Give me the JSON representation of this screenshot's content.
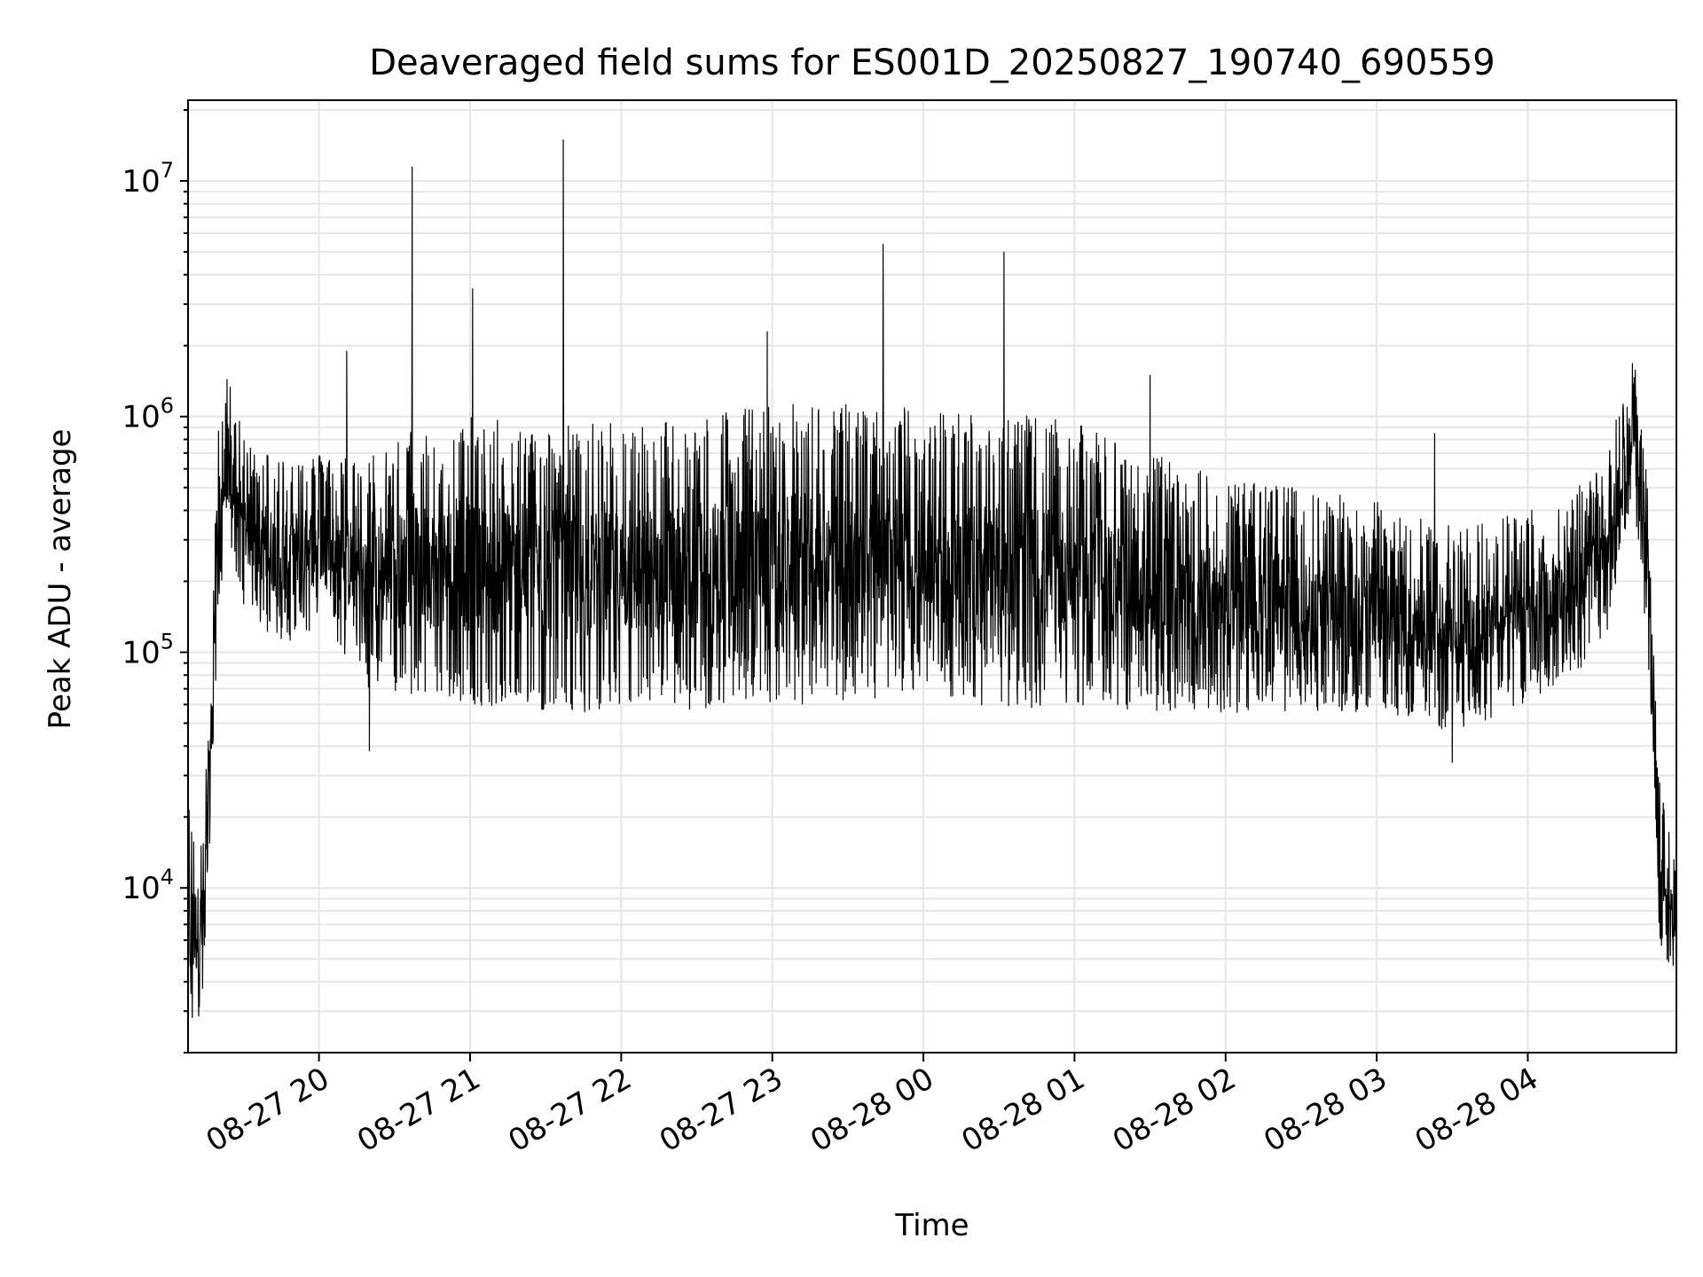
{
  "chart_data": {
    "type": "line",
    "title": "Deaveraged field sums for ES001D_20250827_190740_690559",
    "xlabel": "Time",
    "ylabel": "Peak ADU - average",
    "yscale": "log",
    "ylim": [
      2000,
      22000000
    ],
    "xlim": [
      "2025-08-27 19:08",
      "2025-08-28 04:59"
    ],
    "x_ticks": [
      "2025-08-27 20:00",
      "2025-08-27 21:00",
      "2025-08-27 22:00",
      "2025-08-27 23:00",
      "2025-08-28 00:00",
      "2025-08-28 01:00",
      "2025-08-28 02:00",
      "2025-08-28 03:00",
      "2025-08-28 04:00"
    ],
    "x_tick_labels": [
      "08-27 20",
      "08-27 21",
      "08-27 22",
      "08-27 23",
      "08-28 00",
      "08-28 01",
      "08-28 02",
      "08-28 03",
      "08-28 04"
    ],
    "y_ticks": [
      10000,
      100000,
      1000000,
      10000000
    ],
    "y_tick_labels": [
      {
        "base": "10",
        "exp": "4"
      },
      {
        "base": "10",
        "exp": "5"
      },
      {
        "base": "10",
        "exp": "6"
      },
      {
        "base": "10",
        "exp": "7"
      }
    ],
    "grid": true,
    "line_color": "#000000",
    "grid_color": "#e6e6e6",
    "series": [
      {
        "envelope": [
          {
            "x": "2025-08-27 19:08",
            "lo": 2000,
            "hi": 23000,
            "base": 9000
          },
          {
            "x": "2025-08-27 19:14",
            "lo": 3000,
            "hi": 17000,
            "base": 8000
          },
          {
            "x": "2025-08-27 19:17",
            "lo": 20000,
            "hi": 90000,
            "base": 45000
          },
          {
            "x": "2025-08-27 19:20",
            "lo": 150000,
            "hi": 900000,
            "base": 350000
          },
          {
            "x": "2025-08-27 19:24",
            "lo": 300000,
            "hi": 1600000,
            "base": 900000
          },
          {
            "x": "2025-08-27 19:30",
            "lo": 160000,
            "hi": 800000,
            "base": 380000
          },
          {
            "x": "2025-08-27 19:45",
            "lo": 100000,
            "hi": 700000,
            "base": 250000
          },
          {
            "x": "2025-08-27 20:00",
            "lo": 130000,
            "hi": 700000,
            "base": 400000
          },
          {
            "x": "2025-08-27 20:20",
            "lo": 70000,
            "hi": 700000,
            "base": 170000
          },
          {
            "x": "2025-08-27 20:40",
            "lo": 65000,
            "hi": 950000,
            "base": 140000
          },
          {
            "x": "2025-08-27 21:00",
            "lo": 60000,
            "hi": 1000000,
            "base": 130000
          },
          {
            "x": "2025-08-27 21:30",
            "lo": 55000,
            "hi": 950000,
            "base": 120000
          },
          {
            "x": "2025-08-27 22:00",
            "lo": 55000,
            "hi": 950000,
            "base": 140000
          },
          {
            "x": "2025-08-27 22:30",
            "lo": 55000,
            "hi": 1050000,
            "base": 180000
          },
          {
            "x": "2025-08-27 23:00",
            "lo": 60000,
            "hi": 1150000,
            "base": 230000
          },
          {
            "x": "2025-08-27 23:30",
            "lo": 60000,
            "hi": 1150000,
            "base": 270000
          },
          {
            "x": "2025-08-28 00:00",
            "lo": 70000,
            "hi": 1100000,
            "base": 300000
          },
          {
            "x": "2025-08-28 00:30",
            "lo": 55000,
            "hi": 1050000,
            "base": 320000
          },
          {
            "x": "2025-08-28 01:00",
            "lo": 60000,
            "hi": 950000,
            "base": 260000
          },
          {
            "x": "2025-08-28 01:30",
            "lo": 55000,
            "hi": 700000,
            "base": 180000
          },
          {
            "x": "2025-08-28 02:00",
            "lo": 55000,
            "hi": 550000,
            "base": 160000
          },
          {
            "x": "2025-08-28 02:30",
            "lo": 55000,
            "hi": 500000,
            "base": 150000
          },
          {
            "x": "2025-08-28 03:00",
            "lo": 55000,
            "hi": 450000,
            "base": 130000
          },
          {
            "x": "2025-08-28 03:30",
            "lo": 45000,
            "hi": 350000,
            "base": 110000
          },
          {
            "x": "2025-08-28 04:00",
            "lo": 60000,
            "hi": 400000,
            "base": 120000
          },
          {
            "x": "2025-08-28 04:30",
            "lo": 100000,
            "hi": 600000,
            "base": 250000
          },
          {
            "x": "2025-08-28 04:42",
            "lo": 400000,
            "hi": 1900000,
            "base": 900000
          },
          {
            "x": "2025-08-28 04:48",
            "lo": 80000,
            "hi": 500000,
            "base": 200000
          },
          {
            "x": "2025-08-28 04:52",
            "lo": 6000,
            "hi": 30000,
            "base": 10000
          },
          {
            "x": "2025-08-28 04:59",
            "lo": 4000,
            "hi": 12000,
            "base": 8500
          }
        ],
        "spikes": [
          {
            "x": "2025-08-27 20:11",
            "y": 1900000
          },
          {
            "x": "2025-08-27 20:37",
            "y": 11500000
          },
          {
            "x": "2025-08-27 21:01",
            "y": 3500000
          },
          {
            "x": "2025-08-27 21:37",
            "y": 15000000
          },
          {
            "x": "2025-08-27 22:58",
            "y": 2300000
          },
          {
            "x": "2025-08-27 23:44",
            "y": 5400000
          },
          {
            "x": "2025-08-28 00:32",
            "y": 5000000
          },
          {
            "x": "2025-08-28 01:30",
            "y": 1500000
          },
          {
            "x": "2025-08-28 03:23",
            "y": 850000
          },
          {
            "x": "2025-08-27 20:20",
            "y": 38000
          },
          {
            "x": "2025-08-28 03:30",
            "y": 34000
          }
        ]
      }
    ]
  }
}
